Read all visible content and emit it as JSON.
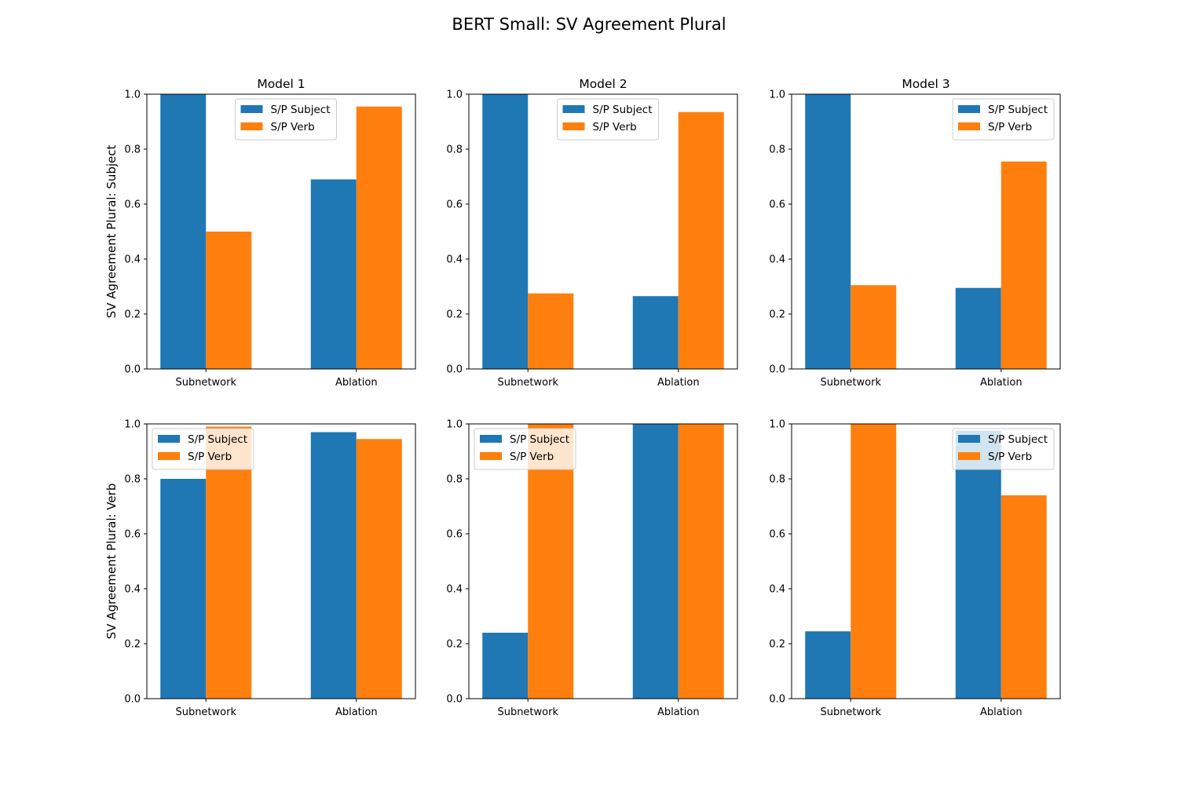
{
  "chart_data": {
    "type": "bar",
    "title": "BERT Small: SV Agreement Plural",
    "ylim": [
      0,
      1
    ],
    "yticks": [
      "0.0",
      "0.2",
      "0.4",
      "0.6",
      "0.8",
      "1.0"
    ],
    "categories": [
      "Subnetwork",
      "Ablation"
    ],
    "series_names": [
      "S/P Subject",
      "S/P Verb"
    ],
    "colors": [
      "#1f77b4",
      "#ff7f0e"
    ],
    "row_labels": [
      "SV Agreement Plural: Subject",
      "SV Agreement Plural: Verb"
    ],
    "column_titles": [
      "Model 1",
      "Model 2",
      "Model 3"
    ],
    "panels": [
      {
        "row": 0,
        "col": 0,
        "title": "Model 1",
        "ylabel": "SV Agreement Plural: Subject",
        "legend": "upper-center",
        "series": [
          {
            "name": "S/P Subject",
            "values": [
              1.0,
              0.69
            ]
          },
          {
            "name": "S/P Verb",
            "values": [
              0.5,
              0.955
            ]
          }
        ]
      },
      {
        "row": 0,
        "col": 1,
        "title": "Model 2",
        "ylabel": "",
        "legend": "upper-center",
        "series": [
          {
            "name": "S/P Subject",
            "values": [
              1.0,
              0.265
            ]
          },
          {
            "name": "S/P Verb",
            "values": [
              0.275,
              0.935
            ]
          }
        ]
      },
      {
        "row": 0,
        "col": 2,
        "title": "Model 3",
        "ylabel": "",
        "legend": "upper-right",
        "series": [
          {
            "name": "S/P Subject",
            "values": [
              1.0,
              0.295
            ]
          },
          {
            "name": "S/P Verb",
            "values": [
              0.305,
              0.755
            ]
          }
        ]
      },
      {
        "row": 1,
        "col": 0,
        "title": "",
        "ylabel": "SV Agreement Plural: Verb",
        "legend": "upper-left",
        "series": [
          {
            "name": "S/P Subject",
            "values": [
              0.8,
              0.97
            ]
          },
          {
            "name": "S/P Verb",
            "values": [
              0.99,
              0.945
            ]
          }
        ]
      },
      {
        "row": 1,
        "col": 1,
        "title": "",
        "ylabel": "",
        "legend": "upper-left",
        "series": [
          {
            "name": "S/P Subject",
            "values": [
              0.24,
              1.0
            ]
          },
          {
            "name": "S/P Verb",
            "values": [
              1.0,
              1.0
            ]
          }
        ]
      },
      {
        "row": 1,
        "col": 2,
        "title": "",
        "ylabel": "",
        "legend": "upper-right",
        "series": [
          {
            "name": "S/P Subject",
            "values": [
              0.245,
              0.975
            ]
          },
          {
            "name": "S/P Verb",
            "values": [
              1.0,
              0.74
            ]
          }
        ]
      }
    ]
  }
}
